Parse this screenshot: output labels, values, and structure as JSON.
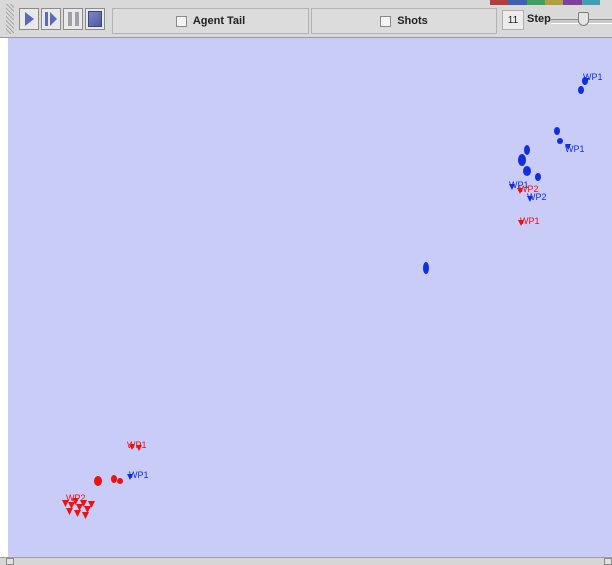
{
  "toolbar": {
    "agent_tail_label": "Agent Tail",
    "shots_label": "Shots",
    "step_value": "11",
    "step_label": "Step",
    "swatch_colors": [
      "#b04040",
      "#4060b0",
      "#40a060",
      "#b0a040",
      "#8040a0",
      "#40a0b0"
    ]
  },
  "agents": {
    "blue_color": "#1030e0",
    "red_color": "#f01010",
    "waypoint_labels": [
      "WP1",
      "WP1",
      "WP1",
      "WP2",
      "WP1",
      "WP1",
      "WP2",
      "WP1",
      "WP2"
    ]
  }
}
